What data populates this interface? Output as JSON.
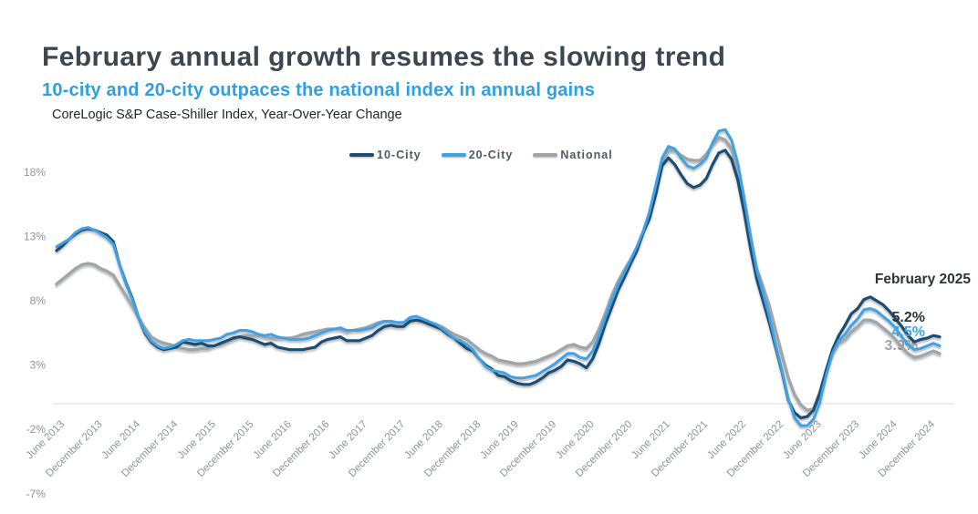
{
  "header": {
    "title": "February annual growth resumes the slowing trend",
    "subtitle": "10-city and 20-city outpaces the national index in annual gains",
    "caption": "CoreLogic S&P Case-Shiller Index, Year-Over-Year Change"
  },
  "colors": {
    "ten_city": "#1b4e73",
    "twenty_city": "#3fa2e4",
    "national": "#a0a5aa",
    "title_text": "#3d4751",
    "subtitle_text": "#2f9fe4",
    "axis_label": "#8b949d",
    "annotation_text": "#2b343c",
    "zero_line": "#d8dcdf"
  },
  "legend": {
    "items": [
      {
        "label": "10-City",
        "color": "#1b4e73"
      },
      {
        "label": "20-City",
        "color": "#3fa2e4"
      },
      {
        "label": "National",
        "color": "#a0a5aa"
      }
    ]
  },
  "annotation": {
    "title": "February 2025",
    "values": [
      {
        "text": "5.2%",
        "series": "10-City",
        "color": "#2b343c",
        "obscured": false
      },
      {
        "text": "4.5%",
        "series": "20-City",
        "color": "#3fa2e4",
        "obscured": false
      },
      {
        "text": "3.9%",
        "series": "National",
        "color": "#a0a5aa",
        "obscured": true
      }
    ]
  },
  "y_axis": {
    "tick_labels": [
      "18%",
      "13%",
      "8%",
      "3%",
      "-2%",
      "-7%"
    ],
    "tick_values": [
      18,
      13,
      8,
      3,
      -2,
      -7
    ]
  },
  "x_axis": {
    "tick_labels": [
      "June 2013",
      "December 2013",
      "June 2014",
      "December 2014",
      "June 2015",
      "December 2015",
      "June 2016",
      "December 2016",
      "June 2017",
      "December 2017",
      "June 2018",
      "December 2018",
      "June 2019",
      "December 2019",
      "June 2020",
      "December 2020",
      "June 2021",
      "December 2021",
      "June 2022",
      "December 2022",
      "June 2023",
      "December 2023",
      "June 2024",
      "December 2024"
    ],
    "tick_every_n_months": 6
  },
  "chart_data": {
    "type": "line",
    "title": "CoreLogic S&P Case-Shiller Index, Year-Over-Year Change",
    "unit": "percent",
    "frequency": "monthly",
    "x_start": "2013-06",
    "x_end": "2025-02",
    "ylim": [
      -7,
      22
    ],
    "grid": false,
    "legend_position": "top-center",
    "last_point_label": "February 2025",
    "series": [
      {
        "name": "10-City",
        "color": "#1b4e73",
        "final_value": 5.2,
        "values": [
          11.9,
          12.3,
          12.8,
          13.2,
          13.5,
          13.6,
          13.5,
          13.3,
          13.1,
          12.6,
          10.8,
          9.4,
          8.2,
          6.7,
          5.5,
          4.8,
          4.4,
          4.2,
          4.3,
          4.4,
          4.8,
          4.7,
          4.6,
          4.7,
          4.5,
          4.5,
          4.7,
          4.9,
          5.1,
          5.2,
          5.1,
          5.0,
          4.8,
          4.6,
          4.7,
          4.4,
          4.3,
          4.2,
          4.2,
          4.2,
          4.3,
          4.4,
          4.8,
          5.0,
          5.1,
          5.2,
          4.9,
          4.9,
          4.9,
          5.1,
          5.3,
          5.7,
          6.0,
          6.1,
          6.0,
          6.0,
          6.4,
          6.5,
          6.4,
          6.2,
          6.0,
          5.8,
          5.4,
          5.1,
          4.7,
          4.3,
          4.1,
          3.5,
          3.0,
          2.7,
          2.2,
          2.1,
          1.8,
          1.6,
          1.5,
          1.5,
          1.7,
          2.0,
          2.4,
          2.6,
          2.9,
          3.4,
          3.3,
          3.1,
          2.8,
          3.5,
          4.7,
          6.2,
          7.5,
          8.8,
          9.8,
          10.9,
          11.9,
          13.3,
          14.4,
          16.3,
          18.5,
          19.1,
          18.6,
          17.8,
          17.1,
          16.8,
          17.0,
          17.5,
          18.6,
          19.5,
          19.7,
          19.0,
          17.4,
          14.9,
          12.1,
          9.7,
          8.0,
          6.3,
          4.4,
          2.5,
          0.3,
          -0.7,
          -1.1,
          -1.0,
          -0.5,
          0.8,
          2.6,
          4.2,
          5.3,
          6.1,
          7.0,
          7.4,
          8.1,
          8.3,
          8.0,
          7.7,
          7.2,
          6.6,
          6.0,
          5.3,
          4.8,
          5.0,
          5.1,
          5.3,
          5.2
        ]
      },
      {
        "name": "20-City",
        "color": "#3fa2e4",
        "final_value": 4.5,
        "values": [
          12.2,
          12.5,
          12.8,
          13.3,
          13.6,
          13.7,
          13.5,
          13.2,
          12.9,
          12.4,
          10.8,
          9.3,
          8.1,
          6.7,
          5.6,
          4.9,
          4.5,
          4.3,
          4.4,
          4.6,
          4.9,
          5.0,
          4.9,
          4.9,
          4.9,
          5.0,
          5.1,
          5.4,
          5.5,
          5.7,
          5.7,
          5.6,
          5.4,
          5.3,
          5.4,
          5.2,
          5.1,
          5.0,
          5.0,
          5.0,
          5.1,
          5.3,
          5.5,
          5.7,
          5.8,
          5.9,
          5.7,
          5.7,
          5.7,
          5.8,
          5.9,
          6.2,
          6.4,
          6.4,
          6.3,
          6.3,
          6.7,
          6.8,
          6.6,
          6.4,
          6.2,
          5.9,
          5.5,
          5.1,
          4.9,
          4.6,
          4.2,
          3.5,
          2.9,
          2.6,
          2.5,
          2.4,
          2.1,
          2.0,
          2.0,
          2.1,
          2.2,
          2.5,
          2.8,
          3.1,
          3.5,
          3.9,
          3.9,
          3.6,
          3.5,
          4.1,
          5.3,
          6.7,
          8.0,
          9.2,
          10.2,
          11.2,
          12.2,
          13.4,
          14.9,
          17.0,
          19.1,
          20.0,
          19.8,
          19.1,
          18.5,
          18.3,
          18.6,
          19.1,
          20.3,
          21.2,
          21.3,
          20.5,
          18.7,
          16.0,
          13.1,
          10.4,
          8.6,
          6.8,
          4.6,
          2.6,
          0.4,
          -1.1,
          -1.7,
          -1.7,
          -1.2,
          0.1,
          2.2,
          3.9,
          4.9,
          5.4,
          6.1,
          6.6,
          7.3,
          7.4,
          7.2,
          6.8,
          6.4,
          5.9,
          5.2,
          4.6,
          4.2,
          4.3,
          4.5,
          4.7,
          4.5
        ]
      },
      {
        "name": "National",
        "color": "#a0a5aa",
        "final_value": 3.9,
        "values": [
          9.3,
          9.7,
          10.1,
          10.5,
          10.8,
          10.9,
          10.8,
          10.5,
          10.3,
          10.0,
          9.2,
          8.4,
          7.6,
          6.7,
          5.9,
          5.2,
          4.9,
          4.7,
          4.6,
          4.4,
          4.3,
          4.2,
          4.2,
          4.3,
          4.3,
          4.5,
          4.6,
          4.8,
          5.0,
          5.2,
          5.3,
          5.3,
          5.3,
          5.2,
          5.1,
          5.1,
          5.1,
          5.1,
          5.2,
          5.4,
          5.5,
          5.6,
          5.7,
          5.8,
          5.8,
          5.8,
          5.6,
          5.7,
          5.8,
          5.9,
          6.1,
          6.3,
          6.4,
          6.4,
          6.3,
          6.3,
          6.5,
          6.5,
          6.4,
          6.3,
          6.2,
          6.0,
          5.7,
          5.4,
          5.2,
          5.0,
          4.6,
          4.2,
          3.9,
          3.7,
          3.4,
          3.3,
          3.2,
          3.1,
          3.1,
          3.2,
          3.3,
          3.5,
          3.7,
          3.9,
          4.2,
          4.5,
          4.6,
          4.4,
          4.3,
          4.8,
          5.8,
          7.0,
          8.4,
          9.5,
          10.4,
          11.2,
          12.0,
          13.3,
          14.7,
          16.7,
          18.7,
          19.7,
          19.7,
          19.3,
          19.0,
          18.9,
          18.9,
          19.4,
          20.1,
          20.7,
          20.5,
          19.8,
          18.1,
          15.6,
          12.9,
          10.5,
          9.1,
          7.6,
          5.7,
          3.8,
          2.0,
          0.7,
          -0.1,
          -0.5,
          -0.4,
          0.9,
          2.5,
          3.9,
          4.7,
          5.0,
          5.6,
          6.0,
          6.5,
          6.5,
          6.3,
          5.9,
          5.5,
          5.0,
          4.4,
          3.9,
          3.6,
          3.7,
          3.9,
          4.1,
          3.9
        ]
      }
    ]
  }
}
